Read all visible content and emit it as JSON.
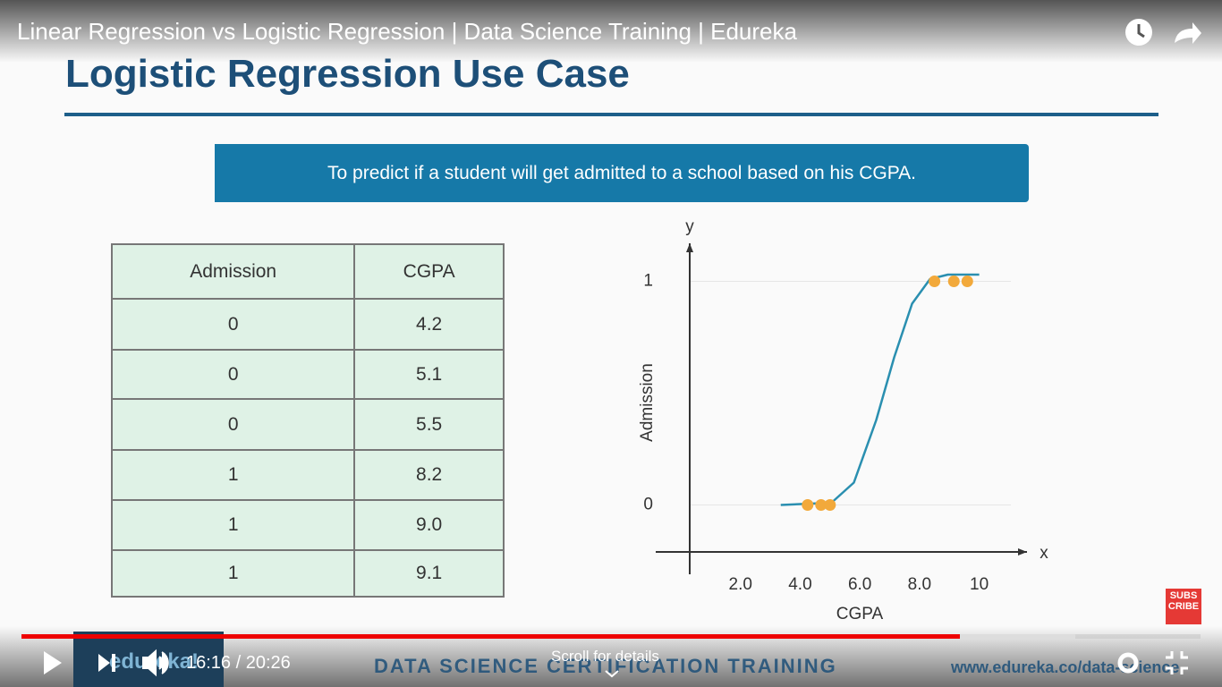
{
  "video": {
    "title": "Linear Regression vs Logistic Regression | Data Science Training | Edureka",
    "time": "16:16 / 20:26",
    "scroll_hint": "Scroll for details",
    "subscribe": "SUBS CRIBE"
  },
  "slide": {
    "heading": "Logistic Regression Use Case",
    "banner": "To predict if a student will get admitted to a school based on his CGPA.",
    "footer_logo": "edureka!",
    "footer_title": "DATA SCIENCE CERTIFICATION TRAINING",
    "footer_url": "www.edureka.co/data-science"
  },
  "table": {
    "header": [
      "Admission",
      "CGPA"
    ],
    "rows": [
      [
        "0",
        "4.2"
      ],
      [
        "0",
        "5.1"
      ],
      [
        "0",
        "5.5"
      ],
      [
        "1",
        "8.2"
      ],
      [
        "1",
        "9.0"
      ],
      [
        "1",
        "9.1"
      ]
    ]
  },
  "chart_data": {
    "type": "scatter",
    "x_label": "CGPA",
    "y_label": "Admission",
    "x_axis_name": "x",
    "y_axis_name": "y",
    "x": [
      4.25,
      4.7,
      5.0,
      8.5,
      9.15,
      9.6
    ],
    "values": [
      0,
      0,
      0,
      1,
      1,
      1
    ],
    "color": "#f2a93b",
    "curve": {
      "x": [
        3.35,
        5.05,
        5.8,
        6.55,
        7.15,
        7.75,
        8.35,
        8.95,
        10
      ],
      "y": [
        0,
        0.01,
        0.1,
        0.38,
        0.66,
        0.9,
        1.01,
        1.03,
        1.03
      ],
      "color": "#2a8fb0"
    },
    "xlim": [
      0.3,
      11.6
    ],
    "ylim": [
      -0.21,
      1.17
    ],
    "xticks": [
      {
        "value": 2,
        "label": "2.0"
      },
      {
        "value": 4,
        "label": "4.0"
      },
      {
        "value": 6,
        "label": "6.0"
      },
      {
        "value": 8,
        "label": "8.0"
      },
      10
    ],
    "yticks": [
      0,
      1
    ]
  }
}
